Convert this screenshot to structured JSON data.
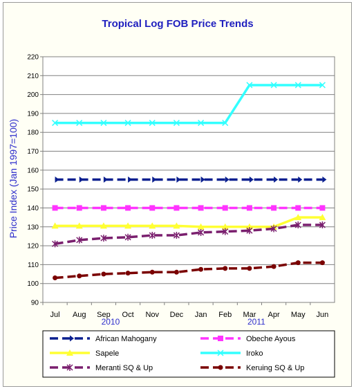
{
  "chart_data": {
    "type": "line",
    "title": "Tropical Log FOB Price Trends",
    "ylabel": "Price Index (Jan 1997=100)",
    "xlabel": "",
    "ylim": [
      90,
      220
    ],
    "yticks": [
      90,
      100,
      110,
      120,
      130,
      140,
      150,
      160,
      170,
      180,
      190,
      200,
      210,
      220
    ],
    "categories": [
      "Jul",
      "Aug",
      "Sep",
      "Oct",
      "Nov",
      "Dec",
      "Jan",
      "Feb",
      "Mar",
      "Apr",
      "May",
      "Jun"
    ],
    "year_labels": [
      {
        "label": "2010",
        "category": "Sep"
      },
      {
        "label": "2011",
        "category": "Mar"
      }
    ],
    "grid": true,
    "legend_position": "bottom",
    "series": [
      {
        "name": "African Mahogany",
        "color": "#0a1f8f",
        "dash": "dash",
        "marker": "arrow",
        "values": [
          155,
          155,
          155,
          155,
          155,
          155,
          155,
          155,
          155,
          155,
          155,
          155
        ]
      },
      {
        "name": "Obeche Ayous",
        "color": "#ff33ff",
        "dash": "dash",
        "marker": "square",
        "values": [
          140,
          140,
          140,
          140,
          140,
          140,
          140,
          140,
          140,
          140,
          140,
          140
        ]
      },
      {
        "name": "Sapele",
        "color": "#ffff33",
        "dash": "solid",
        "marker": "triangle",
        "values": [
          130.5,
          130.5,
          130.5,
          130.5,
          130.5,
          130.5,
          130,
          130,
          130,
          130,
          135,
          135
        ]
      },
      {
        "name": "Iroko",
        "color": "#33ffff",
        "dash": "solid",
        "marker": "cross",
        "values": [
          185,
          185,
          185,
          185,
          185,
          185,
          185,
          185,
          205,
          205,
          205,
          205
        ]
      },
      {
        "name": "Meranti SQ & Up",
        "color": "#7a1f6e",
        "dash": "dash",
        "marker": "star",
        "values": [
          121,
          123,
          124,
          124.5,
          125.5,
          125.5,
          127,
          127.5,
          128,
          129,
          131,
          131
        ]
      },
      {
        "name": "Keruing SQ & Up",
        "color": "#7a0000",
        "dash": "dash",
        "marker": "circle",
        "values": [
          103,
          104,
          105,
          105.5,
          106,
          106,
          107.5,
          108,
          108,
          109,
          111,
          111
        ]
      }
    ]
  }
}
